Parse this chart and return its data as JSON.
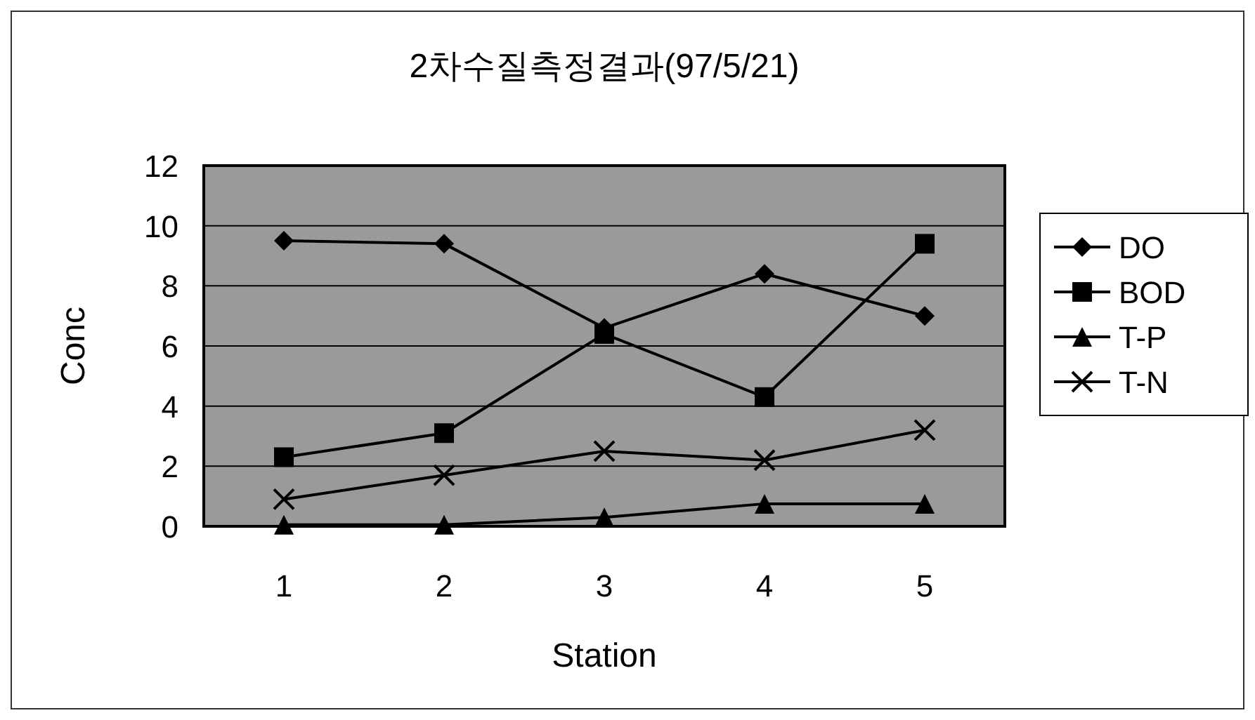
{
  "chart_data": {
    "type": "line",
    "title": "2차수질측정결과(97/5/21)",
    "xlabel": "Station",
    "ylabel": "Conc",
    "categories": [
      "1",
      "2",
      "3",
      "4",
      "5"
    ],
    "series": [
      {
        "name": "DO",
        "color": "#000000",
        "marker": "diamond",
        "values": [
          9.5,
          9.4,
          6.6,
          8.4,
          7.0
        ]
      },
      {
        "name": "BOD",
        "color": "#000000",
        "marker": "square",
        "values": [
          2.3,
          3.1,
          6.4,
          4.3,
          9.4
        ]
      },
      {
        "name": "T-P",
        "color": "#000000",
        "marker": "triangle",
        "values": [
          0.05,
          0.05,
          0.3,
          0.75,
          0.75
        ]
      },
      {
        "name": "T-N",
        "color": "#000000",
        "marker": "cross",
        "values": [
          0.9,
          1.7,
          2.5,
          2.2,
          3.2
        ]
      }
    ],
    "ylim": [
      0,
      12
    ],
    "yticks": [
      0,
      2,
      4,
      6,
      8,
      10,
      12
    ],
    "grid": "y",
    "legend": "right"
  }
}
